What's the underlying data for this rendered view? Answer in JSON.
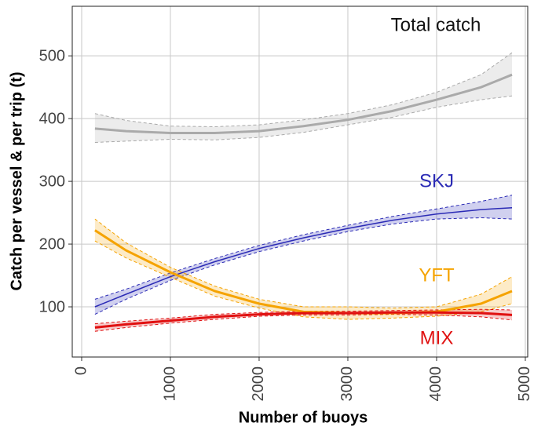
{
  "chart_data": {
    "type": "line",
    "x_label": "Number of buoys",
    "y_label": "Catch per vessel & per trip (t)",
    "x": [
      150,
      500,
      1000,
      1500,
      2000,
      2500,
      3000,
      3500,
      4000,
      4500,
      4850
    ],
    "series": [
      {
        "name": "Total catch",
        "color": "#aaaaaa",
        "values": [
          384,
          380,
          377,
          377,
          380,
          388,
          398,
          412,
          430,
          450,
          470
        ],
        "lower": [
          362,
          364,
          367,
          366,
          370,
          378,
          390,
          402,
          418,
          430,
          436
        ],
        "upper": [
          408,
          397,
          388,
          387,
          390,
          398,
          408,
          422,
          442,
          470,
          505
        ]
      },
      {
        "name": "SKJ",
        "color": "#2b2bb5",
        "values": [
          100,
          120,
          148,
          172,
          193,
          210,
          225,
          238,
          248,
          255,
          258
        ],
        "lower": [
          88,
          112,
          142,
          167,
          188,
          205,
          220,
          232,
          240,
          242,
          240
        ],
        "upper": [
          112,
          128,
          154,
          177,
          198,
          215,
          230,
          244,
          256,
          268,
          278
        ]
      },
      {
        "name": "YFT",
        "color": "#f5a300",
        "values": [
          222,
          190,
          155,
          125,
          105,
          92,
          90,
          90,
          92,
          105,
          125
        ],
        "lower": [
          205,
          178,
          147,
          117,
          98,
          84,
          80,
          82,
          85,
          92,
          105
        ],
        "upper": [
          240,
          202,
          163,
          133,
          112,
          100,
          100,
          98,
          100,
          120,
          148
        ]
      },
      {
        "name": "MIX",
        "color": "#e01010",
        "values": [
          67,
          72,
          78,
          84,
          88,
          90,
          90,
          91,
          91,
          90,
          87
        ],
        "lower": [
          61,
          67,
          74,
          80,
          85,
          87,
          87,
          88,
          87,
          84,
          79
        ],
        "upper": [
          73,
          77,
          82,
          88,
          91,
          93,
          93,
          94,
          95,
          96,
          95
        ]
      }
    ],
    "xlim": [
      -106,
      5027
    ],
    "ylim": [
      20,
      579
    ],
    "xticks": [
      0,
      1000,
      2000,
      3000,
      4000,
      5000
    ],
    "yticks": [
      100,
      200,
      300,
      400,
      500
    ],
    "grid": true
  }
}
